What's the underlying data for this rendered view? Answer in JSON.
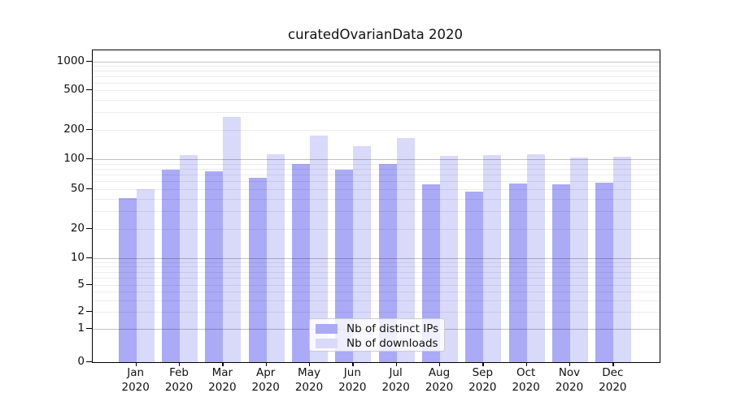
{
  "chart_data": {
    "type": "bar",
    "title": "curatedOvarianData 2020",
    "categories": [
      "Jan 2020",
      "Feb 2020",
      "Mar 2020",
      "Apr 2020",
      "May 2020",
      "Jun 2020",
      "Jul 2020",
      "Aug 2020",
      "Sep 2020",
      "Oct 2020",
      "Nov 2020",
      "Dec 2020"
    ],
    "month_labels": [
      "Jan",
      "Feb",
      "Mar",
      "Apr",
      "May",
      "Jun",
      "Jul",
      "Aug",
      "Sep",
      "Oct",
      "Nov",
      "Dec"
    ],
    "year_label": "2020",
    "series": [
      {
        "name": "Nb of distinct IPs",
        "color": "#aaaaf7",
        "values": [
          41,
          78,
          76,
          65,
          89,
          78,
          89,
          56,
          47,
          57,
          56,
          58
        ]
      },
      {
        "name": "Nb of downloads",
        "color": "#d9d9fa",
        "values": [
          50,
          110,
          270,
          113,
          175,
          135,
          165,
          108,
          110,
          112,
          103,
          105
        ]
      }
    ],
    "yscale": "symlog",
    "y_tick_values": [
      0,
      1,
      2,
      5,
      10,
      20,
      50,
      100,
      200,
      500,
      1000
    ],
    "y_tick_labels": [
      "0",
      "1",
      "2",
      "5",
      "10",
      "20",
      "50",
      "100",
      "200",
      "500",
      "1000"
    ],
    "ylim": [
      0,
      1300
    ],
    "grid": true,
    "legend_position": "inside-bottom-center"
  },
  "colors": {
    "bar_distinct_ips": "#aaaaf7",
    "bar_downloads": "#d9d9fa",
    "axis": "#000000",
    "major_grid": "rgba(0,0,0,0.24)",
    "minor_grid": "rgba(0,0,0,0.075)",
    "background": "#ffffff"
  }
}
